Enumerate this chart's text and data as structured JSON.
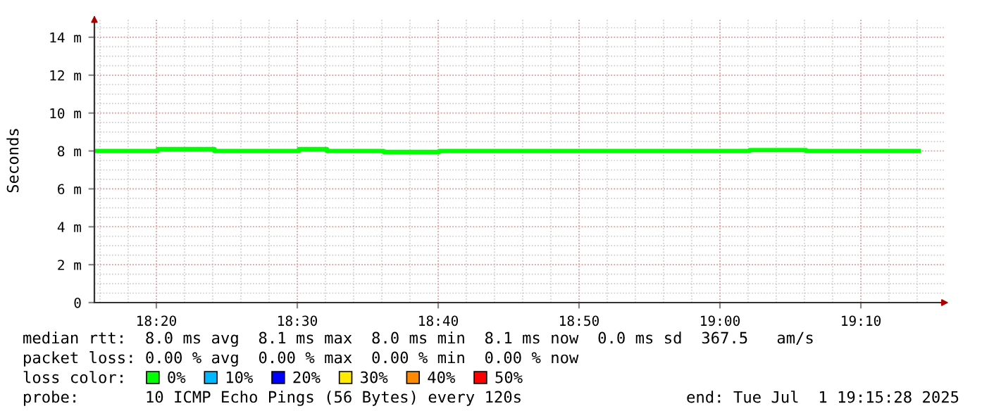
{
  "chart_data": {
    "type": "step",
    "ylabel": "Seconds",
    "x": [
      18.26,
      18.335,
      18.402,
      18.502,
      18.535,
      18.602,
      18.668,
      19.035,
      19.102,
      19.235
    ],
    "series": [
      {
        "name": "0%",
        "color": "#00ff00",
        "values": [
          8.0,
          8.1,
          8.0,
          8.1,
          8.0,
          7.95,
          8.0,
          8.05,
          8.0,
          8.0
        ]
      },
      {
        "name": "10%",
        "color": "#00b8ff",
        "values": [
          null,
          null,
          null,
          null,
          null,
          null,
          null,
          null,
          null,
          null
        ]
      },
      {
        "name": "20%",
        "color": "#0000ff",
        "values": [
          null,
          null,
          null,
          null,
          null,
          null,
          null,
          null,
          null,
          null
        ]
      },
      {
        "name": "30%",
        "color": "#ffea00",
        "values": [
          null,
          null,
          null,
          null,
          null,
          null,
          null,
          null,
          null,
          null
        ]
      },
      {
        "name": "40%",
        "color": "#ff8a00",
        "values": [
          null,
          null,
          null,
          null,
          null,
          null,
          null,
          null,
          null,
          null
        ]
      },
      {
        "name": "50%",
        "color": "#ff0000",
        "values": [
          null,
          null,
          null,
          null,
          null,
          null,
          null,
          null,
          null,
          null
        ]
      }
    ],
    "xlim": [
      18.26,
      19.265
    ],
    "xticks": [
      {
        "value": 18.3333,
        "label": "18:20"
      },
      {
        "value": 18.5,
        "label": "18:30"
      },
      {
        "value": 18.6667,
        "label": "18:40"
      },
      {
        "value": 18.8333,
        "label": "18:50"
      },
      {
        "value": 19.0,
        "label": "19:00"
      },
      {
        "value": 19.1667,
        "label": "19:10"
      }
    ],
    "ylim": [
      0,
      15
    ],
    "yticks": [
      {
        "value": 0,
        "label": "0"
      },
      {
        "value": 2,
        "label": "2 m"
      },
      {
        "value": 4,
        "label": "4 m"
      },
      {
        "value": 6,
        "label": "6 m"
      },
      {
        "value": 8,
        "label": "8 m"
      },
      {
        "value": 10,
        "label": "10 m"
      },
      {
        "value": 12,
        "label": "12 m"
      },
      {
        "value": 14,
        "label": "14 m"
      }
    ],
    "grid": true,
    "legend": "bottom",
    "line_style": "solid",
    "marker": "none",
    "annotations": [
      "median rtt:  8.0 ms avg  8.1 ms max  8.0 ms min  8.1 ms now  0.0 ms sd  367.5   am/s",
      "packet loss: 0.00 % avg  0.00 % max  0.00 % min  0.00 % now",
      "loss color:",
      "probe:       10 ICMP Echo Pings (56 Bytes) every 120s",
      "end: Tue Jul  1 19:15:28 2025"
    ]
  }
}
